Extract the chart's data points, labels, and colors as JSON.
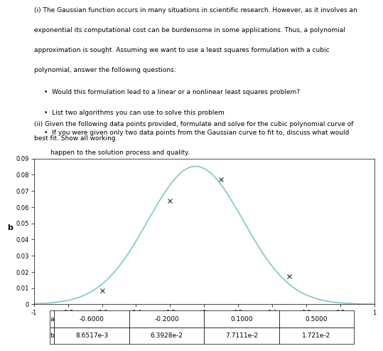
{
  "para_i": "(i) The Gaussian function occurs in many situations in scientific research. However, as it involves an exponential its computational cost can be burdensome in some applications. Thus, a polynomial approximation is sought. Assuming we want to use a least squares formulation with a cubic polynomial, answer the following questions:",
  "bullet1": "Would this formulation lead to a linear or a nonlinear least squares problem?",
  "bullet2": "List two algorithms you can use to solve this problem",
  "bullet3": "If you were given only two data points from the Gaussian curve to fit to, discuss what would happen to the solution process and quality.",
  "para_ii": "(ii) Given the following data points provided, formulate and solve for the cubic polynomial curve of best fit. Show all working.",
  "a_values": [
    -0.6,
    -0.2,
    0.1,
    0.5
  ],
  "b_values": [
    0.0086517,
    0.063928,
    0.077111,
    0.01721
  ],
  "xlabel": "a",
  "ylabel": "b",
  "xlim": [
    -1,
    1
  ],
  "ylim": [
    0,
    0.09
  ],
  "yticks": [
    0,
    0.01,
    0.02,
    0.03,
    0.04,
    0.05,
    0.06,
    0.07,
    0.08,
    0.09
  ],
  "xticks": [
    -1,
    -0.8,
    -0.6,
    -0.4,
    -0.2,
    0,
    0.2,
    0.4,
    0.6,
    0.8,
    1
  ],
  "line_color": "#7ec8c8",
  "marker_color": "#555555",
  "table_a_labels": [
    "-0.6000",
    "-0.2000",
    "0.1000",
    "0.5000"
  ],
  "table_b_labels": [
    "8.6517e-3",
    "6.3928e-2",
    "7.7111e-2",
    "1.721e-2"
  ],
  "bg_color": "#ffffff",
  "gauss_amp": 0.08513,
  "gauss_mu": -0.05,
  "gauss_sigma": 0.28
}
